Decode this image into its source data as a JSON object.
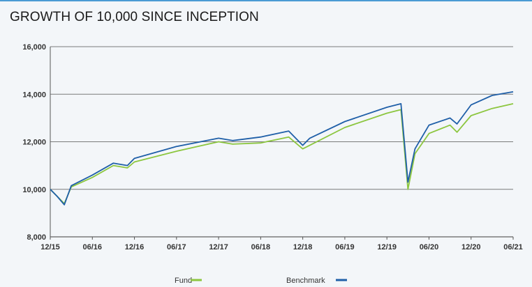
{
  "title": "GROWTH OF 10,000 SINCE INCEPTION",
  "colors": {
    "fund": "#8cc63f",
    "benchmark": "#1f5fa8",
    "grid": "#7a7a7a",
    "title_rule": "#4a9bd4"
  },
  "legend": {
    "fund_label": "Fund",
    "benchmark_label": "Benchmark"
  },
  "chart_data": {
    "type": "line",
    "title": "GROWTH OF 10,000 SINCE INCEPTION",
    "xlabel": "",
    "ylabel": "",
    "ylim": [
      8000,
      16000
    ],
    "xlim": [
      "12/15",
      "06/21"
    ],
    "grid": "horizontal",
    "legend_position": "bottom",
    "y_ticks": [
      "8,000",
      "10,000",
      "12,000",
      "14,000",
      "16,000"
    ],
    "x_ticks": [
      "12/15",
      "06/16",
      "12/16",
      "06/17",
      "12/17",
      "06/18",
      "12/18",
      "06/19",
      "12/19",
      "06/20",
      "12/20",
      "06/21"
    ],
    "x_values": [
      "12/15",
      "01/16",
      "02/16",
      "03/16",
      "06/16",
      "09/16",
      "11/16",
      "12/16",
      "06/17",
      "12/17",
      "02/18",
      "06/18",
      "10/18",
      "12/18",
      "01/19",
      "06/19",
      "12/19",
      "02/20",
      "03/20",
      "04/20",
      "06/20",
      "09/20",
      "10/20",
      "12/20",
      "03/21",
      "06/21"
    ],
    "series": [
      {
        "name": "Fund",
        "values": [
          10000,
          9700,
          9400,
          10100,
          10500,
          11000,
          10900,
          11150,
          11600,
          12000,
          11900,
          11950,
          12200,
          11700,
          11850,
          12600,
          13200,
          13350,
          10000,
          11500,
          12350,
          12700,
          12400,
          13100,
          13400,
          13600
        ]
      },
      {
        "name": "Benchmark",
        "values": [
          10000,
          9700,
          9350,
          10150,
          10600,
          11100,
          11000,
          11300,
          11800,
          12150,
          12050,
          12200,
          12450,
          11850,
          12150,
          12850,
          13450,
          13600,
          10300,
          11700,
          12700,
          13000,
          12750,
          13550,
          13950,
          14100
        ]
      }
    ]
  }
}
